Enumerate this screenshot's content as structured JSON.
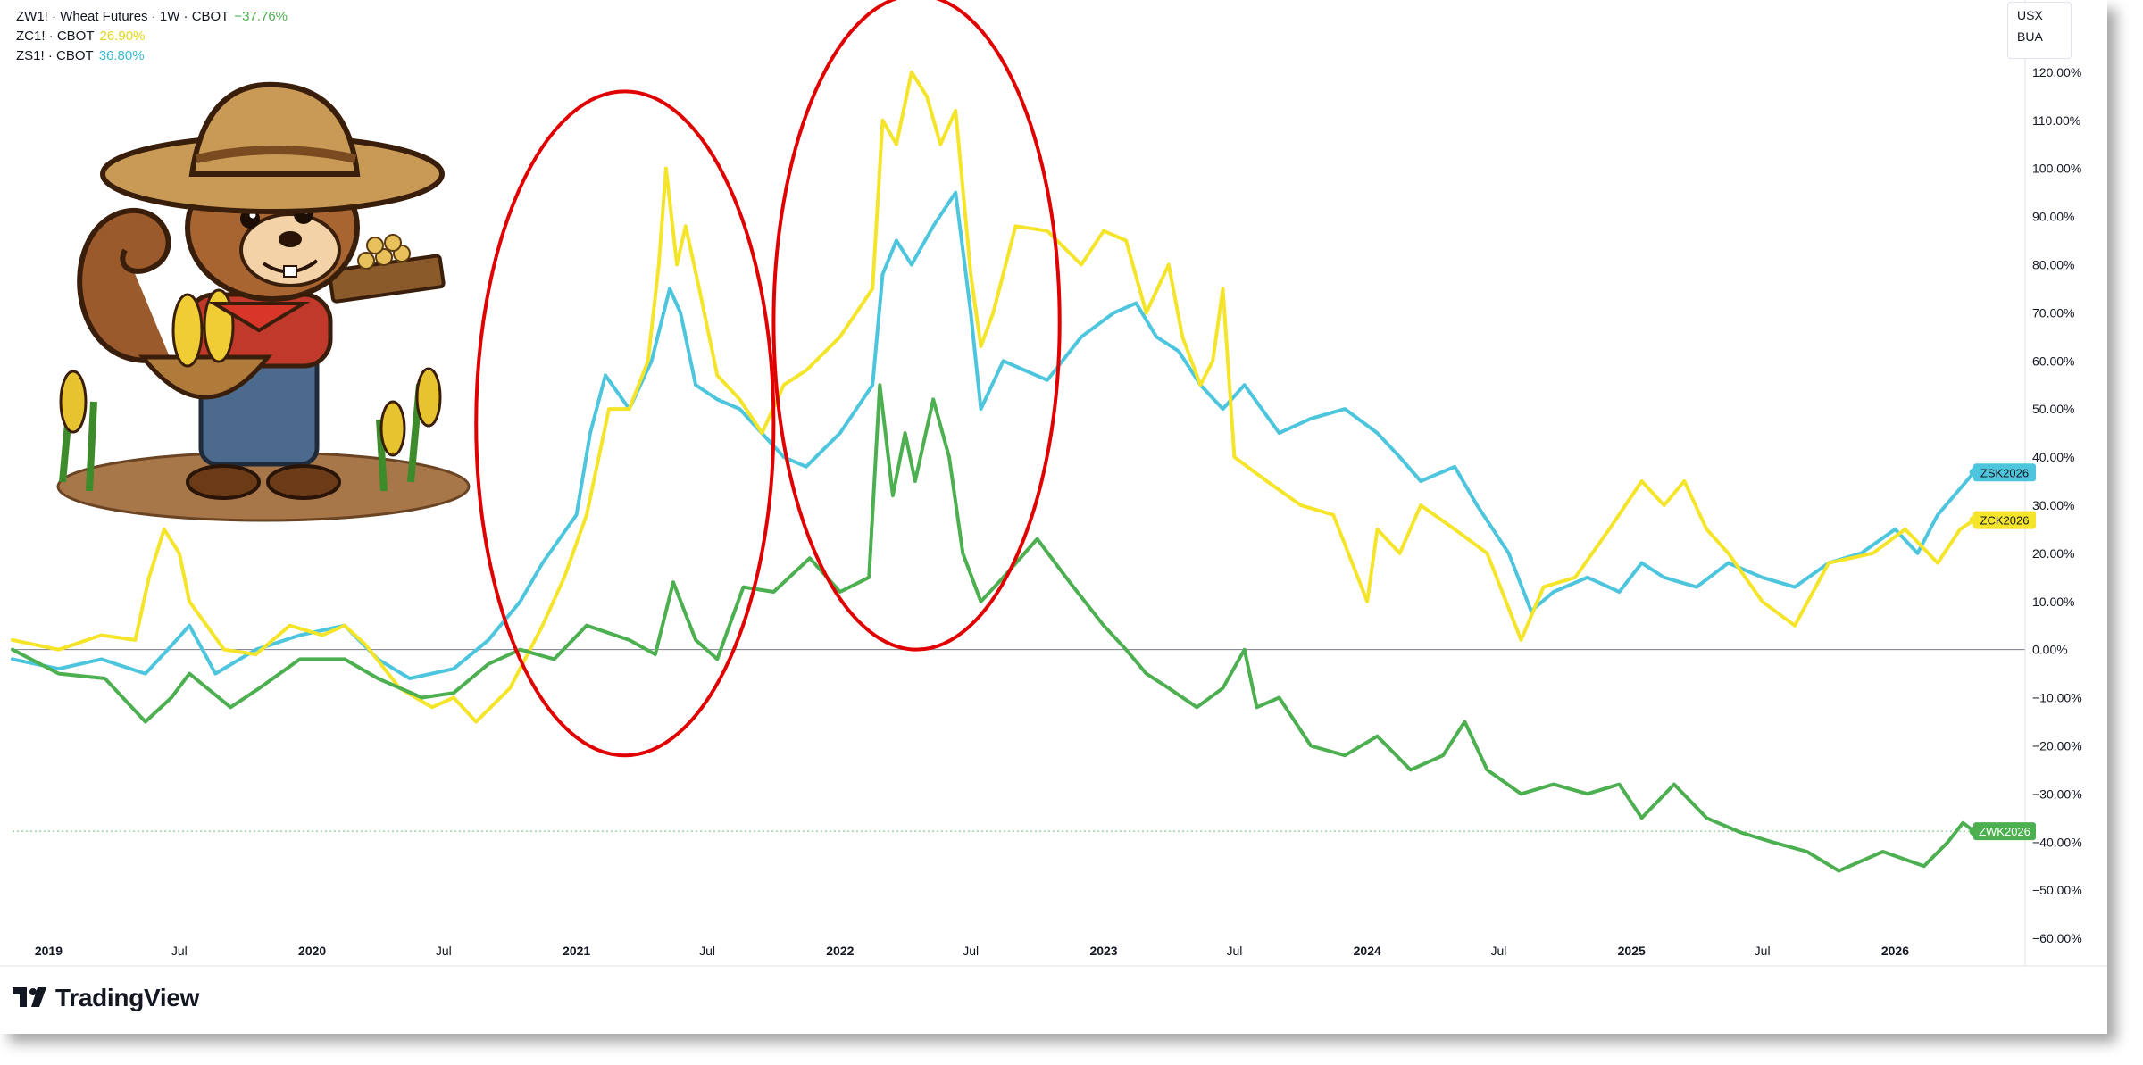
{
  "legend": [
    {
      "label": "ZW1! · Wheat Futures · 1W · CBOT",
      "change": "−37.76%",
      "color": "#4caf50"
    },
    {
      "label": "ZC1! · CBOT",
      "change": "26.90%",
      "color": "#f5e52a"
    },
    {
      "label": "ZS1! · CBOT",
      "change": "36.80%",
      "color": "#4dc6dd"
    }
  ],
  "currency": {
    "unit": "USX",
    "code": "BUA"
  },
  "brand": {
    "name": "TradingView"
  },
  "colors": {
    "wheat": "#4caf50",
    "corn": "#f5e52a",
    "soy": "#4dc6dd",
    "annotation": "#e00000"
  },
  "icons": [
    "squirrel-farmer-illustration",
    "tradingview-logo-icon"
  ],
  "chart_data": {
    "type": "line",
    "x_axis": {
      "range": [
        "2018-11-12",
        "2026-06-30"
      ],
      "ticks": [
        {
          "label": "2019",
          "date": "2019-01-01"
        },
        {
          "label": "Jul",
          "date": "2019-07-01"
        },
        {
          "label": "2020",
          "date": "2020-01-01"
        },
        {
          "label": "Jul",
          "date": "2020-07-01"
        },
        {
          "label": "2021",
          "date": "2021-01-01"
        },
        {
          "label": "Jul",
          "date": "2021-07-01"
        },
        {
          "label": "2022",
          "date": "2022-01-01"
        },
        {
          "label": "Jul",
          "date": "2022-07-01"
        },
        {
          "label": "2023",
          "date": "2023-01-01"
        },
        {
          "label": "Jul",
          "date": "2023-07-01"
        },
        {
          "label": "2024",
          "date": "2024-01-01"
        },
        {
          "label": "Jul",
          "date": "2024-07-01"
        },
        {
          "label": "2025",
          "date": "2025-01-01"
        },
        {
          "label": "Jul",
          "date": "2025-07-01"
        },
        {
          "label": "2026",
          "date": "2026-01-01"
        }
      ]
    },
    "y_axis": {
      "unit": "%",
      "range": [
        -65,
        135
      ],
      "ticks": [
        "120.00%",
        "110.00%",
        "100.00%",
        "90.00%",
        "80.00%",
        "70.00%",
        "60.00%",
        "50.00%",
        "40.00%",
        "30.00%",
        "20.00%",
        "10.00%",
        "0.00%",
        "−10.00%",
        "−20.00%",
        "−30.00%",
        "−40.00%",
        "−50.00%",
        "−60.00%"
      ],
      "tick_values": [
        120,
        110,
        100,
        90,
        80,
        70,
        60,
        50,
        40,
        30,
        20,
        10,
        0,
        -10,
        -20,
        -30,
        -40,
        -50,
        -60
      ]
    },
    "zero_line": 0,
    "series": [
      {
        "key": "wheat",
        "end_label": "ZWK2026",
        "end_value": -37.76,
        "color": "#4caf50",
        "points": [
          [
            "2018-11-12",
            0
          ],
          [
            "2019-01-15",
            -5
          ],
          [
            "2019-03-20",
            -6
          ],
          [
            "2019-05-15",
            -15
          ],
          [
            "2019-06-20",
            -10
          ],
          [
            "2019-07-15",
            -5
          ],
          [
            "2019-09-10",
            -12
          ],
          [
            "2019-10-20",
            -8
          ],
          [
            "2019-12-15",
            -2
          ],
          [
            "2020-02-15",
            -2
          ],
          [
            "2020-04-01",
            -6
          ],
          [
            "2020-06-01",
            -10
          ],
          [
            "2020-07-15",
            -9
          ],
          [
            "2020-09-01",
            -3
          ],
          [
            "2020-10-15",
            0
          ],
          [
            "2020-12-01",
            -2
          ],
          [
            "2021-01-15",
            5
          ],
          [
            "2021-03-15",
            2
          ],
          [
            "2021-04-20",
            -1
          ],
          [
            "2021-05-15",
            14
          ],
          [
            "2021-06-15",
            2
          ],
          [
            "2021-07-15",
            -2
          ],
          [
            "2021-08-20",
            13
          ],
          [
            "2021-10-01",
            12
          ],
          [
            "2021-11-20",
            19
          ],
          [
            "2022-01-01",
            12
          ],
          [
            "2022-02-10",
            15
          ],
          [
            "2022-02-25",
            55
          ],
          [
            "2022-03-15",
            32
          ],
          [
            "2022-04-01",
            45
          ],
          [
            "2022-04-15",
            35
          ],
          [
            "2022-05-10",
            52
          ],
          [
            "2022-06-01",
            40
          ],
          [
            "2022-06-20",
            20
          ],
          [
            "2022-07-15",
            10
          ],
          [
            "2022-08-15",
            15
          ],
          [
            "2022-10-01",
            23
          ],
          [
            "2022-11-15",
            14
          ],
          [
            "2023-01-01",
            5
          ],
          [
            "2023-02-01",
            0
          ],
          [
            "2023-03-01",
            -5
          ],
          [
            "2023-04-01",
            -8
          ],
          [
            "2023-05-10",
            -12
          ],
          [
            "2023-06-15",
            -8
          ],
          [
            "2023-07-15",
            0
          ],
          [
            "2023-08-01",
            -12
          ],
          [
            "2023-09-01",
            -10
          ],
          [
            "2023-10-15",
            -20
          ],
          [
            "2023-12-01",
            -22
          ],
          [
            "2024-01-15",
            -18
          ],
          [
            "2024-03-01",
            -25
          ],
          [
            "2024-04-15",
            -22
          ],
          [
            "2024-05-15",
            -15
          ],
          [
            "2024-06-15",
            -25
          ],
          [
            "2024-08-01",
            -30
          ],
          [
            "2024-09-15",
            -28
          ],
          [
            "2024-11-01",
            -30
          ],
          [
            "2024-12-15",
            -28
          ],
          [
            "2025-01-15",
            -35
          ],
          [
            "2025-03-01",
            -28
          ],
          [
            "2025-04-15",
            -35
          ],
          [
            "2025-06-01",
            -38
          ],
          [
            "2025-07-15",
            -40
          ],
          [
            "2025-09-01",
            -42
          ],
          [
            "2025-10-15",
            -46
          ],
          [
            "2025-12-15",
            -42
          ],
          [
            "2026-02-10",
            -45
          ],
          [
            "2026-03-15",
            -40
          ],
          [
            "2026-04-05",
            -36
          ],
          [
            "2026-04-20",
            -37.76
          ]
        ]
      },
      {
        "key": "corn",
        "end_label": "ZCK2026",
        "end_value": 26.9,
        "color": "#f5e52a",
        "points": [
          [
            "2018-11-12",
            2
          ],
          [
            "2019-01-15",
            0
          ],
          [
            "2019-03-15",
            3
          ],
          [
            "2019-05-01",
            2
          ],
          [
            "2019-05-20",
            15
          ],
          [
            "2019-06-10",
            25
          ],
          [
            "2019-07-01",
            20
          ],
          [
            "2019-07-15",
            10
          ],
          [
            "2019-09-01",
            0
          ],
          [
            "2019-10-15",
            -1
          ],
          [
            "2019-12-01",
            5
          ],
          [
            "2020-01-15",
            3
          ],
          [
            "2020-02-15",
            5
          ],
          [
            "2020-03-15",
            1
          ],
          [
            "2020-05-01",
            -8
          ],
          [
            "2020-06-15",
            -12
          ],
          [
            "2020-07-15",
            -10
          ],
          [
            "2020-08-15",
            -15
          ],
          [
            "2020-10-01",
            -8
          ],
          [
            "2020-11-15",
            5
          ],
          [
            "2020-12-15",
            15
          ],
          [
            "2021-01-15",
            28
          ],
          [
            "2021-02-15",
            50
          ],
          [
            "2021-03-15",
            50
          ],
          [
            "2021-04-10",
            60
          ],
          [
            "2021-04-25",
            80
          ],
          [
            "2021-05-05",
            100
          ],
          [
            "2021-05-20",
            80
          ],
          [
            "2021-06-01",
            88
          ],
          [
            "2021-06-20",
            75
          ],
          [
            "2021-07-15",
            57
          ],
          [
            "2021-08-15",
            52
          ],
          [
            "2021-09-15",
            45
          ],
          [
            "2021-10-15",
            55
          ],
          [
            "2021-11-15",
            58
          ],
          [
            "2022-01-01",
            65
          ],
          [
            "2022-02-15",
            75
          ],
          [
            "2022-03-01",
            110
          ],
          [
            "2022-03-20",
            105
          ],
          [
            "2022-04-10",
            120
          ],
          [
            "2022-05-01",
            115
          ],
          [
            "2022-05-20",
            105
          ],
          [
            "2022-06-10",
            112
          ],
          [
            "2022-07-01",
            78
          ],
          [
            "2022-07-15",
            63
          ],
          [
            "2022-08-01",
            70
          ],
          [
            "2022-09-01",
            88
          ],
          [
            "2022-10-15",
            87
          ],
          [
            "2022-12-01",
            80
          ],
          [
            "2023-01-01",
            87
          ],
          [
            "2023-02-01",
            85
          ],
          [
            "2023-03-01",
            70
          ],
          [
            "2023-04-01",
            80
          ],
          [
            "2023-04-20",
            65
          ],
          [
            "2023-05-15",
            55
          ],
          [
            "2023-06-01",
            60
          ],
          [
            "2023-06-15",
            75
          ],
          [
            "2023-07-01",
            40
          ],
          [
            "2023-08-15",
            35
          ],
          [
            "2023-10-01",
            30
          ],
          [
            "2023-11-15",
            28
          ],
          [
            "2024-01-01",
            10
          ],
          [
            "2024-01-15",
            25
          ],
          [
            "2024-02-15",
            20
          ],
          [
            "2024-03-15",
            30
          ],
          [
            "2024-05-01",
            25
          ],
          [
            "2024-06-15",
            20
          ],
          [
            "2024-08-01",
            2
          ],
          [
            "2024-09-01",
            13
          ],
          [
            "2024-10-15",
            15
          ],
          [
            "2024-12-01",
            25
          ],
          [
            "2025-01-15",
            35
          ],
          [
            "2025-02-15",
            30
          ],
          [
            "2025-03-15",
            35
          ],
          [
            "2025-04-15",
            25
          ],
          [
            "2025-05-15",
            20
          ],
          [
            "2025-07-01",
            10
          ],
          [
            "2025-08-15",
            5
          ],
          [
            "2025-10-01",
            18
          ],
          [
            "2025-12-01",
            20
          ],
          [
            "2026-01-15",
            25
          ],
          [
            "2026-03-01",
            18
          ],
          [
            "2026-04-01",
            25
          ],
          [
            "2026-04-20",
            26.9
          ]
        ]
      },
      {
        "key": "soy",
        "end_label": "ZSK2026",
        "end_value": 36.8,
        "color": "#4dc6dd",
        "points": [
          [
            "2018-11-12",
            -2
          ],
          [
            "2019-01-15",
            -4
          ],
          [
            "2019-03-15",
            -2
          ],
          [
            "2019-05-15",
            -5
          ],
          [
            "2019-06-15",
            0
          ],
          [
            "2019-07-15",
            5
          ],
          [
            "2019-08-20",
            -5
          ],
          [
            "2019-10-15",
            0
          ],
          [
            "2019-12-15",
            3
          ],
          [
            "2020-02-15",
            5
          ],
          [
            "2020-04-01",
            -2
          ],
          [
            "2020-05-15",
            -6
          ],
          [
            "2020-07-15",
            -4
          ],
          [
            "2020-09-01",
            2
          ],
          [
            "2020-10-15",
            10
          ],
          [
            "2020-11-15",
            18
          ],
          [
            "2021-01-01",
            28
          ],
          [
            "2021-01-20",
            45
          ],
          [
            "2021-02-10",
            57
          ],
          [
            "2021-03-15",
            50
          ],
          [
            "2021-04-15",
            60
          ],
          [
            "2021-05-10",
            75
          ],
          [
            "2021-05-25",
            70
          ],
          [
            "2021-06-15",
            55
          ],
          [
            "2021-07-15",
            52
          ],
          [
            "2021-08-15",
            50
          ],
          [
            "2021-10-15",
            40
          ],
          [
            "2021-11-15",
            38
          ],
          [
            "2022-01-01",
            45
          ],
          [
            "2022-02-15",
            55
          ],
          [
            "2022-03-01",
            78
          ],
          [
            "2022-03-20",
            85
          ],
          [
            "2022-04-10",
            80
          ],
          [
            "2022-05-10",
            88
          ],
          [
            "2022-06-10",
            95
          ],
          [
            "2022-07-01",
            70
          ],
          [
            "2022-07-15",
            50
          ],
          [
            "2022-08-15",
            60
          ],
          [
            "2022-10-15",
            56
          ],
          [
            "2022-12-01",
            65
          ],
          [
            "2023-01-15",
            70
          ],
          [
            "2023-02-15",
            72
          ],
          [
            "2023-03-15",
            65
          ],
          [
            "2023-04-15",
            62
          ],
          [
            "2023-05-15",
            55
          ],
          [
            "2023-06-15",
            50
          ],
          [
            "2023-07-15",
            55
          ],
          [
            "2023-09-01",
            45
          ],
          [
            "2023-10-15",
            48
          ],
          [
            "2023-12-01",
            50
          ],
          [
            "2024-01-15",
            45
          ],
          [
            "2024-02-15",
            40
          ],
          [
            "2024-03-15",
            35
          ],
          [
            "2024-05-01",
            38
          ],
          [
            "2024-06-01",
            30
          ],
          [
            "2024-07-15",
            20
          ],
          [
            "2024-08-15",
            8
          ],
          [
            "2024-09-15",
            12
          ],
          [
            "2024-11-01",
            15
          ],
          [
            "2024-12-15",
            12
          ],
          [
            "2025-01-15",
            18
          ],
          [
            "2025-02-15",
            15
          ],
          [
            "2025-04-01",
            13
          ],
          [
            "2025-05-15",
            18
          ],
          [
            "2025-07-01",
            15
          ],
          [
            "2025-08-15",
            13
          ],
          [
            "2025-10-01",
            18
          ],
          [
            "2025-11-15",
            20
          ],
          [
            "2026-01-01",
            25
          ],
          [
            "2026-02-01",
            20
          ],
          [
            "2026-03-01",
            28
          ],
          [
            "2026-04-20",
            36.8
          ]
        ]
      }
    ],
    "annotations": [
      {
        "shape": "ellipse",
        "x_range": [
          "2020-08-15",
          "2021-10-01"
        ],
        "y_range": [
          -22,
          116
        ]
      },
      {
        "shape": "ellipse",
        "x_range": [
          "2021-10-01",
          "2022-11-01"
        ],
        "y_range": [
          0,
          136
        ]
      }
    ]
  }
}
